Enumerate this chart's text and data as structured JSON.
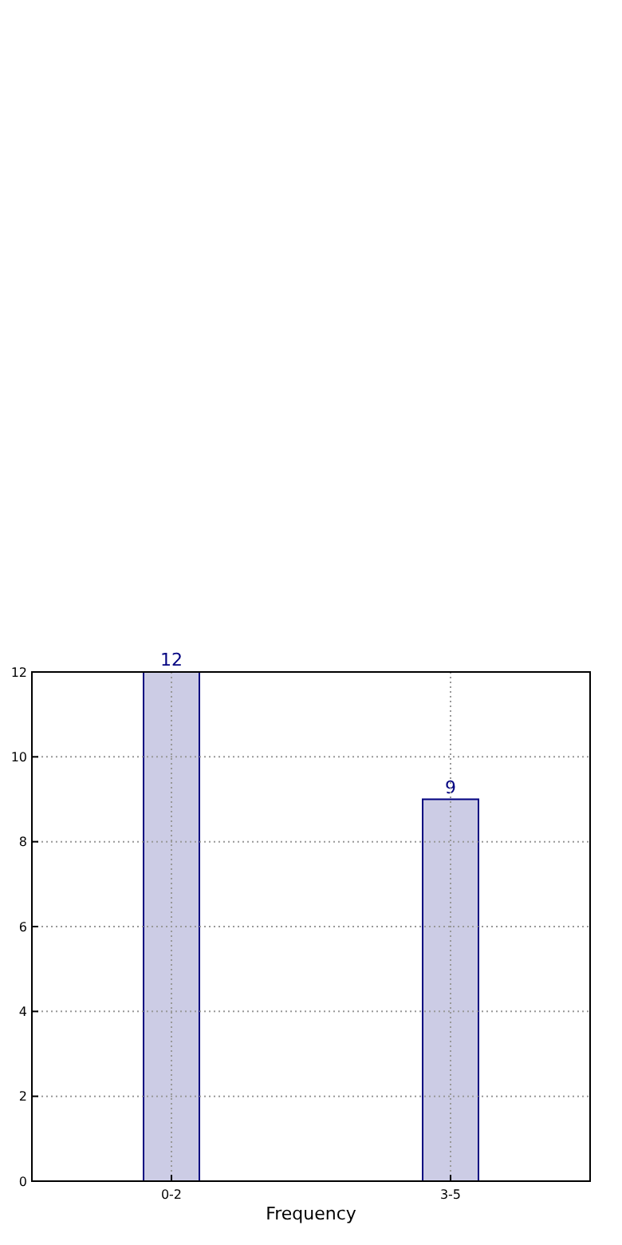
{
  "chart_data": {
    "type": "bar",
    "xlabel": "Frequency",
    "categories": [
      "0-2",
      "3-5"
    ],
    "values": [
      12,
      9
    ],
    "color": "#ccccE5",
    "ylim": [
      0,
      12
    ],
    "yticks": [
      0,
      2,
      4,
      6,
      8,
      10,
      12
    ],
    "grid": true,
    "data_labels": true
  }
}
